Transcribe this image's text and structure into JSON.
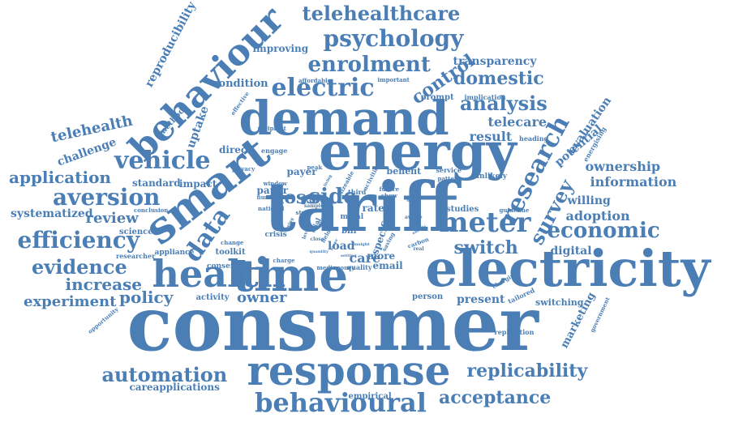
{
  "colors": {
    "word": "#4a7eb5",
    "background": "#ffffff"
  },
  "words": [
    "consumer",
    "electricity",
    "tariff",
    "energy",
    "demand",
    "response",
    "time",
    "behaviour",
    "smart",
    "health",
    "vehicle",
    "electric",
    "behavioural",
    "aversion",
    "efficiency",
    "evidence",
    "meter",
    "research",
    "survey",
    "automation",
    "replicability",
    "acceptance",
    "economic",
    "psychology",
    "telehealthcare",
    "enrolment",
    "domestic",
    "analysis",
    "control",
    "data",
    "application",
    "side",
    "loss",
    "switch",
    "increase",
    "policy",
    "experiment",
    "owner",
    "review",
    "telecare",
    "result",
    "ownership",
    "information",
    "adoption",
    "digital",
    "willing",
    "potential",
    "evaluation",
    "telehealth",
    "reproducibility",
    "transparency",
    "uptake",
    "challenge",
    "improving",
    "condition",
    "systematized",
    "standard",
    "impact",
    "direct",
    "care",
    "load",
    "email",
    "present",
    "person",
    "marketing",
    "switching",
    "careapplications",
    "empirical",
    "payer",
    "paper",
    "rate",
    "third",
    "benefit",
    "studies",
    "more",
    "method",
    "science",
    "toolkit",
    "appliance",
    "researcher",
    "consent",
    "activity",
    "engage",
    "recipient",
    "effective",
    "affordable",
    "important",
    "prompt",
    "implication",
    "heading",
    "energising",
    "guideline",
    "tailored",
    "service",
    "pattern",
    "unlikely",
    "replication",
    "government",
    "opportunity",
    "conclusion",
    "crisis",
    "bill",
    "metal",
    "specific",
    "quality",
    "median",
    "money",
    "number",
    "national",
    "window",
    "privacy",
    "sample",
    "study",
    "charge",
    "change",
    "trial",
    "future",
    "show",
    "peak",
    "sizeable",
    "activities",
    "saving",
    "carbon",
    "averse",
    "charging",
    "field",
    "close",
    "insight",
    "enable",
    "real",
    "level",
    "being",
    "lower",
    "quantity",
    "setting",
    "offer",
    "alter",
    "living"
  ]
}
